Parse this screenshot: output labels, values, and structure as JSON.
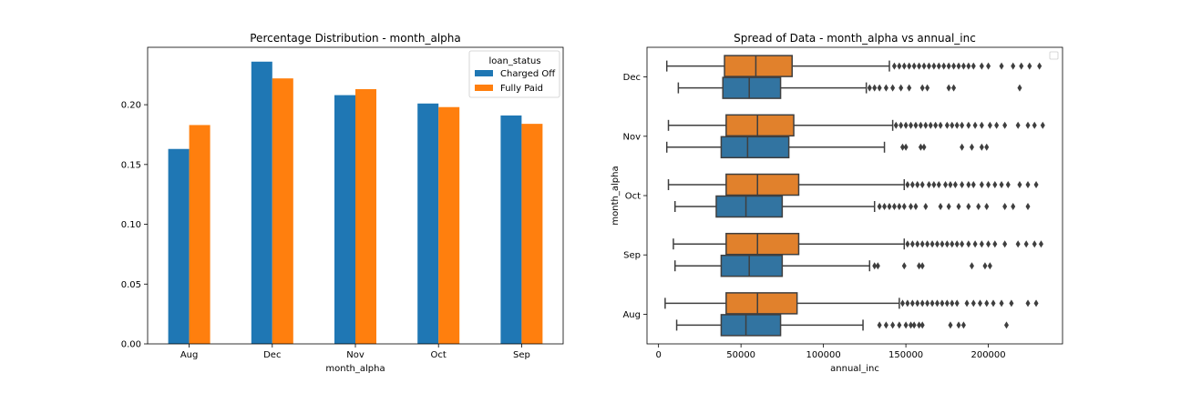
{
  "chart_data": [
    {
      "type": "bar",
      "title": "Percentage Distribution - month_alpha",
      "xlabel": "month_alpha",
      "ylabel": "",
      "categories": [
        "Aug",
        "Dec",
        "Nov",
        "Oct",
        "Sep"
      ],
      "ylim": [
        0,
        0.248
      ],
      "yticks": [
        "0.00",
        "0.05",
        "0.10",
        "0.15",
        "0.20"
      ],
      "legend": {
        "title": "loan_status",
        "placement": "top-right"
      },
      "series": [
        {
          "name": "Charged Off",
          "color": "#1f77b4",
          "values": [
            0.163,
            0.236,
            0.208,
            0.201,
            0.191
          ]
        },
        {
          "name": "Fully Paid",
          "color": "#ff7f0e",
          "values": [
            0.183,
            0.222,
            0.213,
            0.198,
            0.184
          ]
        }
      ],
      "grid": false
    },
    {
      "type": "box",
      "title": "Spread of Data - month_alpha vs annual_inc",
      "xlabel": "annual_inc",
      "ylabel": "month_alpha",
      "orientation": "horizontal",
      "categories": [
        "Dec",
        "Nov",
        "Oct",
        "Sep",
        "Aug"
      ],
      "xlim": [
        -7000,
        245000
      ],
      "xticks": [
        "0",
        "50000",
        "100000",
        "150000",
        "200000"
      ],
      "legend": {
        "placement": "top-right",
        "entries": []
      },
      "grid": false,
      "groups": [
        {
          "category": "Dec",
          "boxes": [
            {
              "color": "#e1812c",
              "whisker_low": 5000,
              "q1": 40000,
              "median": 59000,
              "q3": 81000,
              "whisker_high": 140000,
              "outliers": [
                143000,
                146000,
                149000,
                152000,
                155000,
                158000,
                161000,
                164000,
                167000,
                170000,
                173000,
                176000,
                179000,
                182000,
                185000,
                188000,
                191000,
                196000,
                200000,
                208000,
                215000,
                220000,
                225000,
                231000
              ]
            },
            {
              "color": "#3274a1",
              "whisker_low": 12000,
              "q1": 39000,
              "median": 55000,
              "q3": 74000,
              "whisker_high": 126000,
              "outliers": [
                128000,
                131000,
                134000,
                138000,
                142000,
                147000,
                152000,
                160000,
                163000,
                176000,
                179000,
                219000
              ]
            }
          ]
        },
        {
          "category": "Nov",
          "boxes": [
            {
              "color": "#e1812c",
              "whisker_low": 6000,
              "q1": 41000,
              "median": 60000,
              "q3": 82000,
              "whisker_high": 142000,
              "outliers": [
                144000,
                147000,
                150000,
                153000,
                156000,
                159000,
                162000,
                165000,
                168000,
                171000,
                175000,
                178000,
                181000,
                184000,
                188000,
                192000,
                196000,
                201000,
                205000,
                210000,
                218000,
                224000,
                228000,
                233000
              ]
            },
            {
              "color": "#3274a1",
              "whisker_low": 5000,
              "q1": 38000,
              "median": 54000,
              "q3": 79000,
              "whisker_high": 137000,
              "outliers": [
                148000,
                150000,
                159000,
                161000,
                184000,
                190000,
                196000,
                199000
              ]
            }
          ]
        },
        {
          "category": "Oct",
          "boxes": [
            {
              "color": "#e1812c",
              "whisker_low": 6000,
              "q1": 41000,
              "median": 60000,
              "q3": 85000,
              "whisker_high": 149000,
              "outliers": [
                151000,
                154000,
                157000,
                160000,
                164000,
                167000,
                170000,
                174000,
                177000,
                180000,
                184000,
                188000,
                191000,
                196000,
                200000,
                204000,
                208000,
                212000,
                219000,
                224000,
                229000
              ]
            },
            {
              "color": "#3274a1",
              "whisker_low": 10000,
              "q1": 35000,
              "median": 53000,
              "q3": 75000,
              "whisker_high": 131000,
              "outliers": [
                134000,
                137000,
                140000,
                143000,
                146000,
                149000,
                153000,
                156000,
                162000,
                171000,
                176000,
                182000,
                188000,
                194000,
                199000,
                210000,
                215000,
                224000
              ]
            }
          ]
        },
        {
          "category": "Sep",
          "boxes": [
            {
              "color": "#e1812c",
              "whisker_low": 9000,
              "q1": 41000,
              "median": 60000,
              "q3": 85000,
              "whisker_high": 149000,
              "outliers": [
                151000,
                154000,
                157000,
                160000,
                163000,
                166000,
                169000,
                172000,
                175000,
                178000,
                181000,
                184000,
                188000,
                192000,
                196000,
                200000,
                204000,
                210000,
                218000,
                223000,
                228000,
                232000
              ]
            },
            {
              "color": "#3274a1",
              "whisker_low": 10000,
              "q1": 38000,
              "median": 55000,
              "q3": 75000,
              "whisker_high": 128000,
              "outliers": [
                131000,
                133000,
                149000,
                158000,
                160000,
                190000,
                198000,
                201000
              ]
            }
          ]
        },
        {
          "category": "Aug",
          "boxes": [
            {
              "color": "#e1812c",
              "whisker_low": 4000,
              "q1": 41000,
              "median": 60000,
              "q3": 84000,
              "whisker_high": 146000,
              "outliers": [
                148000,
                151000,
                154000,
                157000,
                160000,
                163000,
                166000,
                169000,
                172000,
                175000,
                178000,
                181000,
                187000,
                191000,
                195000,
                199000,
                203000,
                208000,
                214000,
                224000,
                229000
              ]
            },
            {
              "color": "#3274a1",
              "whisker_low": 11000,
              "q1": 38000,
              "median": 53000,
              "q3": 74000,
              "whisker_high": 124000,
              "outliers": [
                134000,
                138000,
                142000,
                146000,
                150000,
                153000,
                155000,
                158000,
                160000,
                177000,
                182000,
                185000,
                211000
              ]
            }
          ]
        }
      ]
    }
  ]
}
